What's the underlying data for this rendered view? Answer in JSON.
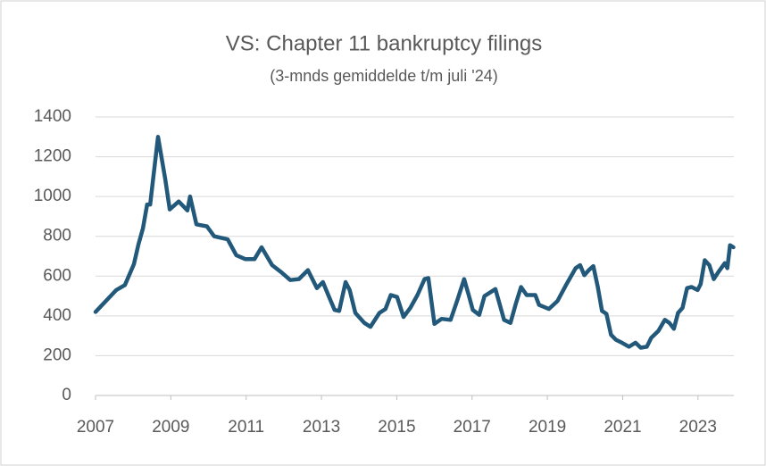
{
  "chart_data": {
    "type": "line",
    "title": "VS: Chapter 11 bankruptcy filings",
    "subtitle": "(3-mnds gemiddelde t/m juli '24)",
    "x": [
      2007.0,
      2007.55,
      2007.78,
      2008.02,
      2008.14,
      2008.26,
      2008.37,
      2008.45,
      2008.66,
      2008.85,
      2008.97,
      2009.21,
      2009.44,
      2009.51,
      2009.68,
      2009.96,
      2010.15,
      2010.51,
      2010.74,
      2010.98,
      2011.22,
      2011.41,
      2011.69,
      2011.93,
      2012.17,
      2012.4,
      2012.64,
      2012.88,
      2013.04,
      2013.18,
      2013.35,
      2013.47,
      2013.64,
      2013.75,
      2013.9,
      2014.14,
      2014.3,
      2014.54,
      2014.7,
      2014.84,
      2015.01,
      2015.18,
      2015.36,
      2015.55,
      2015.74,
      2015.84,
      2016.0,
      2016.19,
      2016.43,
      2016.62,
      2016.79,
      2016.91,
      2017.02,
      2017.19,
      2017.33,
      2017.62,
      2017.73,
      2017.85,
      2018.02,
      2018.16,
      2018.3,
      2018.45,
      2018.68,
      2018.78,
      2019.04,
      2019.27,
      2019.51,
      2019.75,
      2019.87,
      2019.98,
      2020.1,
      2020.22,
      2020.34,
      2020.45,
      2020.57,
      2020.69,
      2020.82,
      2020.98,
      2021.17,
      2021.34,
      2021.48,
      2021.64,
      2021.76,
      2021.95,
      2022.12,
      2022.24,
      2022.36,
      2022.47,
      2022.59,
      2022.71,
      2022.83,
      2022.99,
      2023.07,
      2023.18,
      2023.3,
      2023.42,
      2023.54,
      2023.71,
      2023.78,
      2023.85,
      2023.94
    ],
    "values": [
      420,
      530,
      555,
      660,
      760,
      840,
      960,
      960,
      1300,
      1090,
      935,
      975,
      930,
      1000,
      860,
      850,
      800,
      785,
      705,
      685,
      685,
      745,
      655,
      620,
      580,
      585,
      630,
      540,
      570,
      505,
      430,
      425,
      570,
      530,
      415,
      365,
      345,
      415,
      435,
      505,
      495,
      395,
      440,
      505,
      585,
      590,
      360,
      385,
      380,
      485,
      585,
      505,
      430,
      405,
      500,
      535,
      460,
      380,
      365,
      460,
      545,
      505,
      505,
      455,
      435,
      475,
      560,
      640,
      655,
      605,
      630,
      650,
      545,
      425,
      410,
      305,
      280,
      265,
      245,
      265,
      240,
      245,
      290,
      325,
      380,
      365,
      335,
      415,
      440,
      540,
      545,
      530,
      560,
      680,
      655,
      585,
      620,
      665,
      640,
      755,
      745
    ],
    "color": "#22587a",
    "xlim": [
      2007,
      2024
    ],
    "xticks": [
      2007,
      2009,
      2011,
      2013,
      2015,
      2017,
      2019,
      2021,
      2023
    ],
    "ylim": [
      0,
      1400
    ],
    "yticks": [
      0,
      200,
      400,
      600,
      800,
      1000,
      1200,
      1400
    ],
    "grid": true
  }
}
